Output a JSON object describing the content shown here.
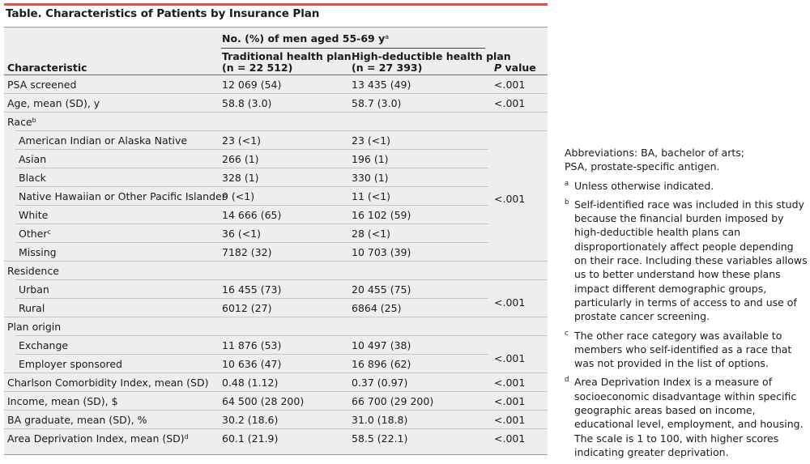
{
  "title": "Table. Characteristics of Patients by Insurance Plan",
  "header": {
    "group_label": "No. (%) of men aged 55-69 y",
    "group_label_sup": "a",
    "col_characteristic": "Characteristic",
    "col_traditional_l1": "Traditional health plan",
    "col_traditional_l2": "(n = 22 512)",
    "col_hdhp_l1": "High-deductible health plan",
    "col_hdhp_l2": "(n = 27 393)",
    "col_p_italic": "P",
    "col_p_rest": " value"
  },
  "rows": [
    {
      "char": "PSA screened",
      "trad": "12 069 (54)",
      "hdhp": "13 435 (49)",
      "p": "<.001"
    },
    {
      "char": "Age, mean (SD), y",
      "trad": "58.8 (3.0)",
      "hdhp": "58.7 (3.0)",
      "p": "<.001"
    },
    {
      "char": "Race",
      "sup": "b",
      "trad": "",
      "hdhp": "",
      "p": ""
    },
    {
      "char": "American Indian or Alaska Native",
      "trad": "23 (<1)",
      "hdhp": "23 (<1)"
    },
    {
      "char": "Asian",
      "trad": "266 (1)",
      "hdhp": "196 (1)"
    },
    {
      "char": "Black",
      "trad": "328 (1)",
      "hdhp": "330 (1)"
    },
    {
      "char": "Native Hawaiian or Other Pacific Islander",
      "trad": "9 (<1)",
      "hdhp": "11 (<1)"
    },
    {
      "char": "White",
      "trad": "14 666 (65)",
      "hdhp": "16 102 (59)"
    },
    {
      "char": "Other",
      "sup": "c",
      "trad": "36 (<1)",
      "hdhp": "28 (<1)"
    },
    {
      "char": "Missing",
      "trad": "7182 (32)",
      "hdhp": "10 703 (39)"
    },
    {
      "char": "Residence",
      "trad": "",
      "hdhp": ""
    },
    {
      "char": "Urban",
      "trad": "16 455 (73)",
      "hdhp": "20 455 (75)"
    },
    {
      "char": "Rural",
      "trad": "6012 (27)",
      "hdhp": "6864 (25)"
    },
    {
      "char": "Plan origin",
      "trad": "",
      "hdhp": ""
    },
    {
      "char": "Exchange",
      "trad": "11 876 (53)",
      "hdhp": "10 497 (38)"
    },
    {
      "char": "Employer sponsored",
      "trad": "10 636 (47)",
      "hdhp": "16 896 (62)"
    },
    {
      "char": "Charlson Comorbidity Index, mean (SD)",
      "trad": "0.48 (1.12)",
      "hdhp": "0.37 (0.97)",
      "p": "<.001"
    },
    {
      "char": "Income, mean (SD), $",
      "trad": "64 500 (28 200)",
      "hdhp": "66 700 (29 200)",
      "p": "<.001"
    },
    {
      "char": "BA graduate, mean (SD), %",
      "trad": "30.2 (18.6)",
      "hdhp": "31.0 (18.8)",
      "p": "<.001"
    },
    {
      "char": "Area Deprivation Index, mean (SD)",
      "sup": "d",
      "trad": "60.1 (21.9)",
      "hdhp": "58.5 (22.1)",
      "p": "<.001"
    }
  ],
  "grouped_p": {
    "race": "<.001",
    "residence": "<.001",
    "plan_origin": "<.001"
  },
  "notes": {
    "abbr_l1": "Abbreviations: BA, bachelor of arts;",
    "abbr_l2": "PSA, prostate-specific antigen.",
    "footnotes": [
      {
        "mark": "a",
        "text": "Unless otherwise indicated."
      },
      {
        "mark": "b",
        "text": "Self-identified race was included in this study because the financial burden imposed by high-deductible health plans can disproportionately affect people depending on their race. Including these variables allows us to better understand how these plans impact different demographic groups, particularly in terms of access to and use of prostate cancer screening."
      },
      {
        "mark": "c",
        "text": "The other race category was available to members who self-identified as a race that was not provided in the list of options."
      },
      {
        "mark": "d",
        "text": "Area Deprivation Index is a measure of socioeconomic disadvantage within specific geographic areas based on income, educational level, employment, and housing. The scale is 1 to 100, with higher scores indicating greater deprivation."
      }
    ]
  }
}
